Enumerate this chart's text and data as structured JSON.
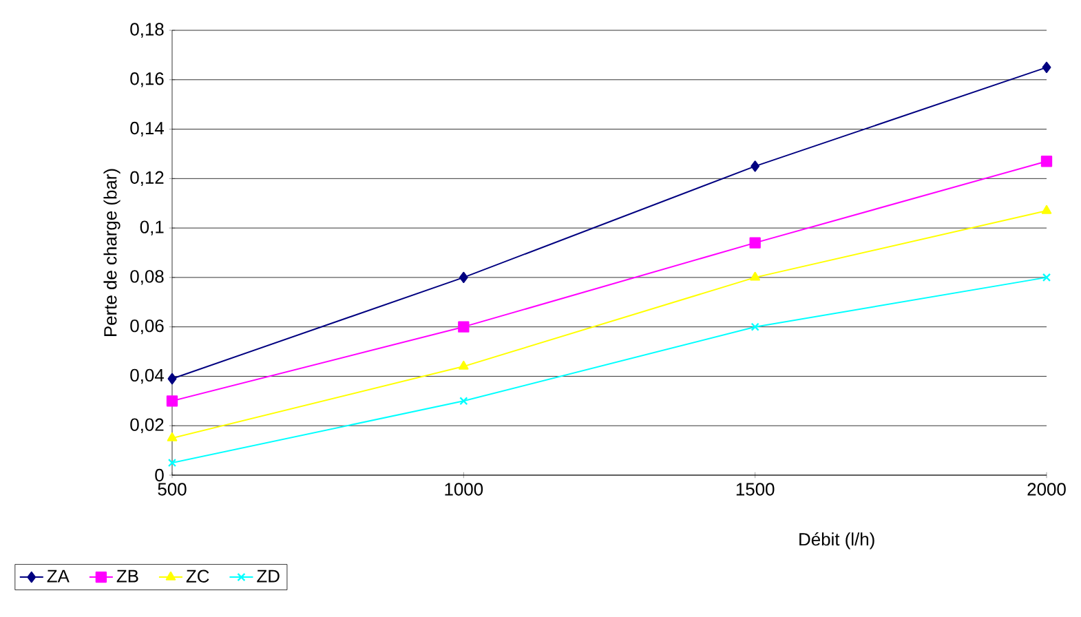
{
  "chart_data": {
    "type": "line",
    "xlabel": "Débit (l/h)",
    "ylabel": "Perte de charge (bar)",
    "x": [
      500,
      1000,
      1500,
      2000
    ],
    "series": [
      {
        "name": "ZA",
        "color": "#000080",
        "marker": "diamond",
        "values": [
          0.039,
          0.08,
          0.125,
          0.165
        ]
      },
      {
        "name": "ZB",
        "color": "#ff00ff",
        "marker": "square",
        "values": [
          0.03,
          0.06,
          0.094,
          0.127
        ]
      },
      {
        "name": "ZC",
        "color": "#ffff00",
        "marker": "triangle",
        "values": [
          0.015,
          0.044,
          0.08,
          0.107
        ]
      },
      {
        "name": "ZD",
        "color": "#00ffff",
        "marker": "cross",
        "values": [
          0.005,
          0.03,
          0.06,
          0.08
        ]
      }
    ],
    "xlim": [
      500,
      2000
    ],
    "xticks": [
      500,
      1000,
      1500,
      2000
    ],
    "ylim": [
      0,
      0.18
    ],
    "yticks": [
      0,
      {
        "value": 0.02,
        "label": "0,02"
      },
      {
        "value": 0.04,
        "label": "0,04"
      },
      {
        "value": 0.06,
        "label": "0,06"
      },
      {
        "value": 0.08,
        "label": "0,08"
      },
      {
        "value": 0.1,
        "label": "0,1"
      },
      {
        "value": 0.12,
        "label": "0,12"
      },
      {
        "value": 0.14,
        "label": "0,14"
      },
      {
        "value": 0.16,
        "label": "0,16"
      },
      {
        "value": 0.18,
        "label": "0,18"
      }
    ],
    "grid": "y",
    "legend": "bottom left",
    "line_style": "solid"
  }
}
